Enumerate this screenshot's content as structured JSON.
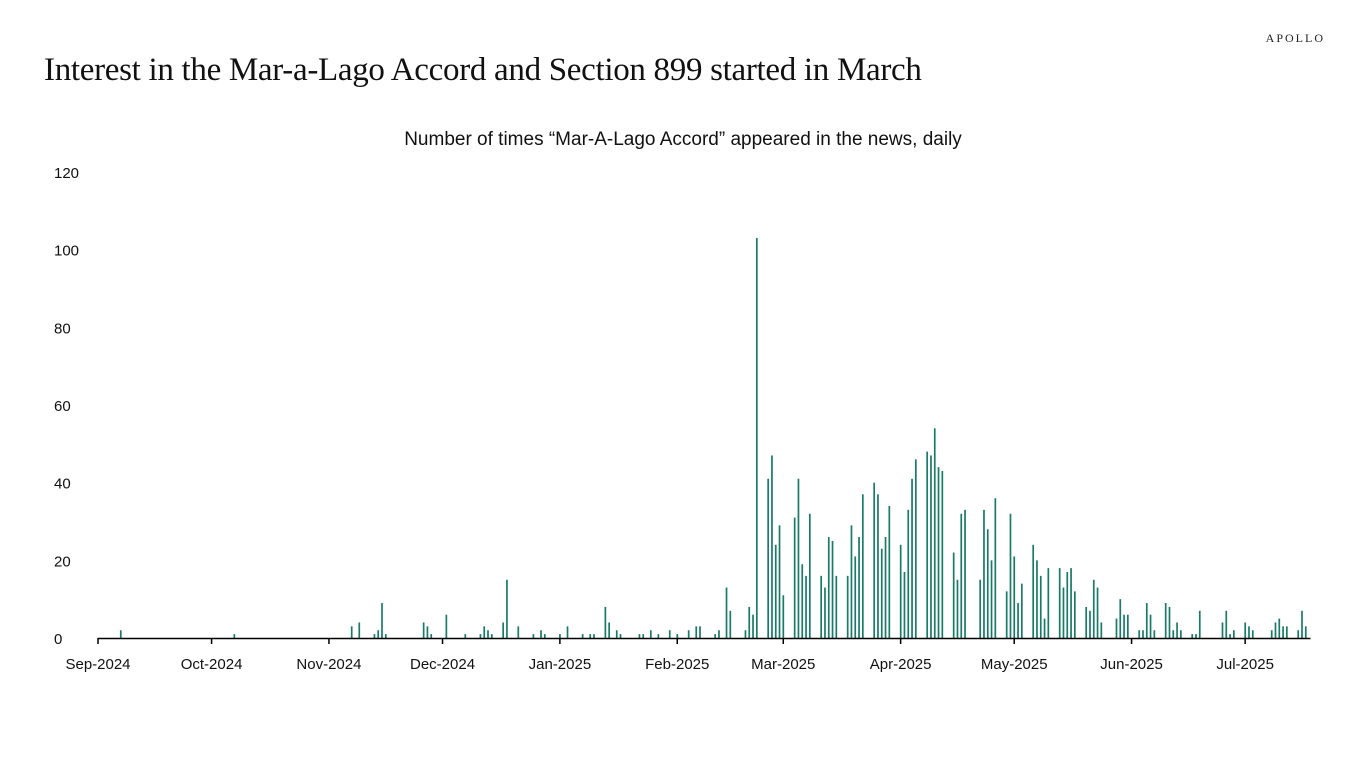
{
  "brand": "APOLLO",
  "title": "Interest in the Mar-a-Lago Accord and Section 899 started in March",
  "chart_data": {
    "type": "bar",
    "title": "Number of times “Mar-A-Lago Accord” appeared in the news, daily",
    "xlabel": "",
    "ylabel": "",
    "x_unit": "days since 2024-09-01",
    "xlim": [
      0,
      320
    ],
    "ylim": [
      0,
      120
    ],
    "yticks": [
      0,
      20,
      40,
      60,
      80,
      100,
      120
    ],
    "xticks": [
      {
        "day": 0,
        "label": "Sep-2024"
      },
      {
        "day": 30,
        "label": "Oct-2024"
      },
      {
        "day": 61,
        "label": "Nov-2024"
      },
      {
        "day": 91,
        "label": "Dec-2024"
      },
      {
        "day": 122,
        "label": "Jan-2025"
      },
      {
        "day": 153,
        "label": "Feb-2025"
      },
      {
        "day": 181,
        "label": "Mar-2025"
      },
      {
        "day": 212,
        "label": "Apr-2025"
      },
      {
        "day": 242,
        "label": "May-2025"
      },
      {
        "day": 273,
        "label": "Jun-2025"
      },
      {
        "day": 303,
        "label": "Jul-2025"
      }
    ],
    "color": "#1a7a68",
    "points": [
      [
        6,
        2
      ],
      [
        36,
        1
      ],
      [
        67,
        3
      ],
      [
        69,
        4
      ],
      [
        73,
        1
      ],
      [
        74,
        2
      ],
      [
        75,
        9
      ],
      [
        76,
        1
      ],
      [
        86,
        4
      ],
      [
        87,
        3
      ],
      [
        88,
        1
      ],
      [
        92,
        6
      ],
      [
        97,
        1
      ],
      [
        101,
        1
      ],
      [
        102,
        3
      ],
      [
        103,
        2
      ],
      [
        104,
        1
      ],
      [
        107,
        4
      ],
      [
        108,
        15
      ],
      [
        111,
        3
      ],
      [
        115,
        1
      ],
      [
        117,
        2
      ],
      [
        118,
        1
      ],
      [
        122,
        1
      ],
      [
        124,
        3
      ],
      [
        128,
        1
      ],
      [
        130,
        1
      ],
      [
        131,
        1
      ],
      [
        134,
        8
      ],
      [
        135,
        4
      ],
      [
        137,
        2
      ],
      [
        138,
        1
      ],
      [
        143,
        1
      ],
      [
        144,
        1
      ],
      [
        146,
        2
      ],
      [
        148,
        1
      ],
      [
        151,
        2
      ],
      [
        153,
        1
      ],
      [
        156,
        2
      ],
      [
        158,
        3
      ],
      [
        159,
        3
      ],
      [
        163,
        1
      ],
      [
        164,
        2
      ],
      [
        166,
        13
      ],
      [
        167,
        7
      ],
      [
        171,
        2
      ],
      [
        172,
        8
      ],
      [
        173,
        6
      ],
      [
        174,
        103
      ],
      [
        177,
        41
      ],
      [
        178,
        47
      ],
      [
        179,
        24
      ],
      [
        180,
        29
      ],
      [
        181,
        11
      ],
      [
        184,
        31
      ],
      [
        185,
        41
      ],
      [
        186,
        19
      ],
      [
        187,
        16
      ],
      [
        188,
        32
      ],
      [
        191,
        16
      ],
      [
        192,
        13
      ],
      [
        193,
        26
      ],
      [
        194,
        25
      ],
      [
        195,
        16
      ],
      [
        198,
        16
      ],
      [
        199,
        29
      ],
      [
        200,
        21
      ],
      [
        201,
        26
      ],
      [
        202,
        37
      ],
      [
        205,
        40
      ],
      [
        206,
        37
      ],
      [
        207,
        23
      ],
      [
        208,
        26
      ],
      [
        209,
        34
      ],
      [
        212,
        24
      ],
      [
        213,
        17
      ],
      [
        214,
        33
      ],
      [
        215,
        41
      ],
      [
        216,
        46
      ],
      [
        219,
        48
      ],
      [
        220,
        47
      ],
      [
        221,
        54
      ],
      [
        222,
        44
      ],
      [
        223,
        43
      ],
      [
        226,
        22
      ],
      [
        227,
        15
      ],
      [
        228,
        32
      ],
      [
        229,
        33
      ],
      [
        233,
        15
      ],
      [
        234,
        33
      ],
      [
        235,
        28
      ],
      [
        236,
        20
      ],
      [
        237,
        36
      ],
      [
        240,
        12
      ],
      [
        241,
        32
      ],
      [
        242,
        21
      ],
      [
        243,
        9
      ],
      [
        244,
        14
      ],
      [
        247,
        24
      ],
      [
        248,
        20
      ],
      [
        249,
        16
      ],
      [
        250,
        5
      ],
      [
        251,
        18
      ],
      [
        254,
        18
      ],
      [
        255,
        13
      ],
      [
        256,
        17
      ],
      [
        257,
        18
      ],
      [
        258,
        12
      ],
      [
        261,
        8
      ],
      [
        262,
        7
      ],
      [
        263,
        15
      ],
      [
        264,
        13
      ],
      [
        265,
        4
      ],
      [
        269,
        5
      ],
      [
        270,
        10
      ],
      [
        271,
        6
      ],
      [
        272,
        6
      ],
      [
        275,
        2
      ],
      [
        276,
        2
      ],
      [
        277,
        9
      ],
      [
        278,
        6
      ],
      [
        279,
        2
      ],
      [
        282,
        9
      ],
      [
        283,
        8
      ],
      [
        284,
        2
      ],
      [
        285,
        4
      ],
      [
        286,
        2
      ],
      [
        289,
        1
      ],
      [
        290,
        1
      ],
      [
        291,
        7
      ],
      [
        297,
        4
      ],
      [
        298,
        7
      ],
      [
        299,
        1
      ],
      [
        300,
        2
      ],
      [
        303,
        4
      ],
      [
        304,
        3
      ],
      [
        305,
        2
      ],
      [
        310,
        2
      ],
      [
        311,
        4
      ],
      [
        312,
        5
      ],
      [
        313,
        3
      ],
      [
        314,
        3
      ],
      [
        317,
        2
      ],
      [
        318,
        7
      ],
      [
        319,
        3
      ]
    ]
  }
}
